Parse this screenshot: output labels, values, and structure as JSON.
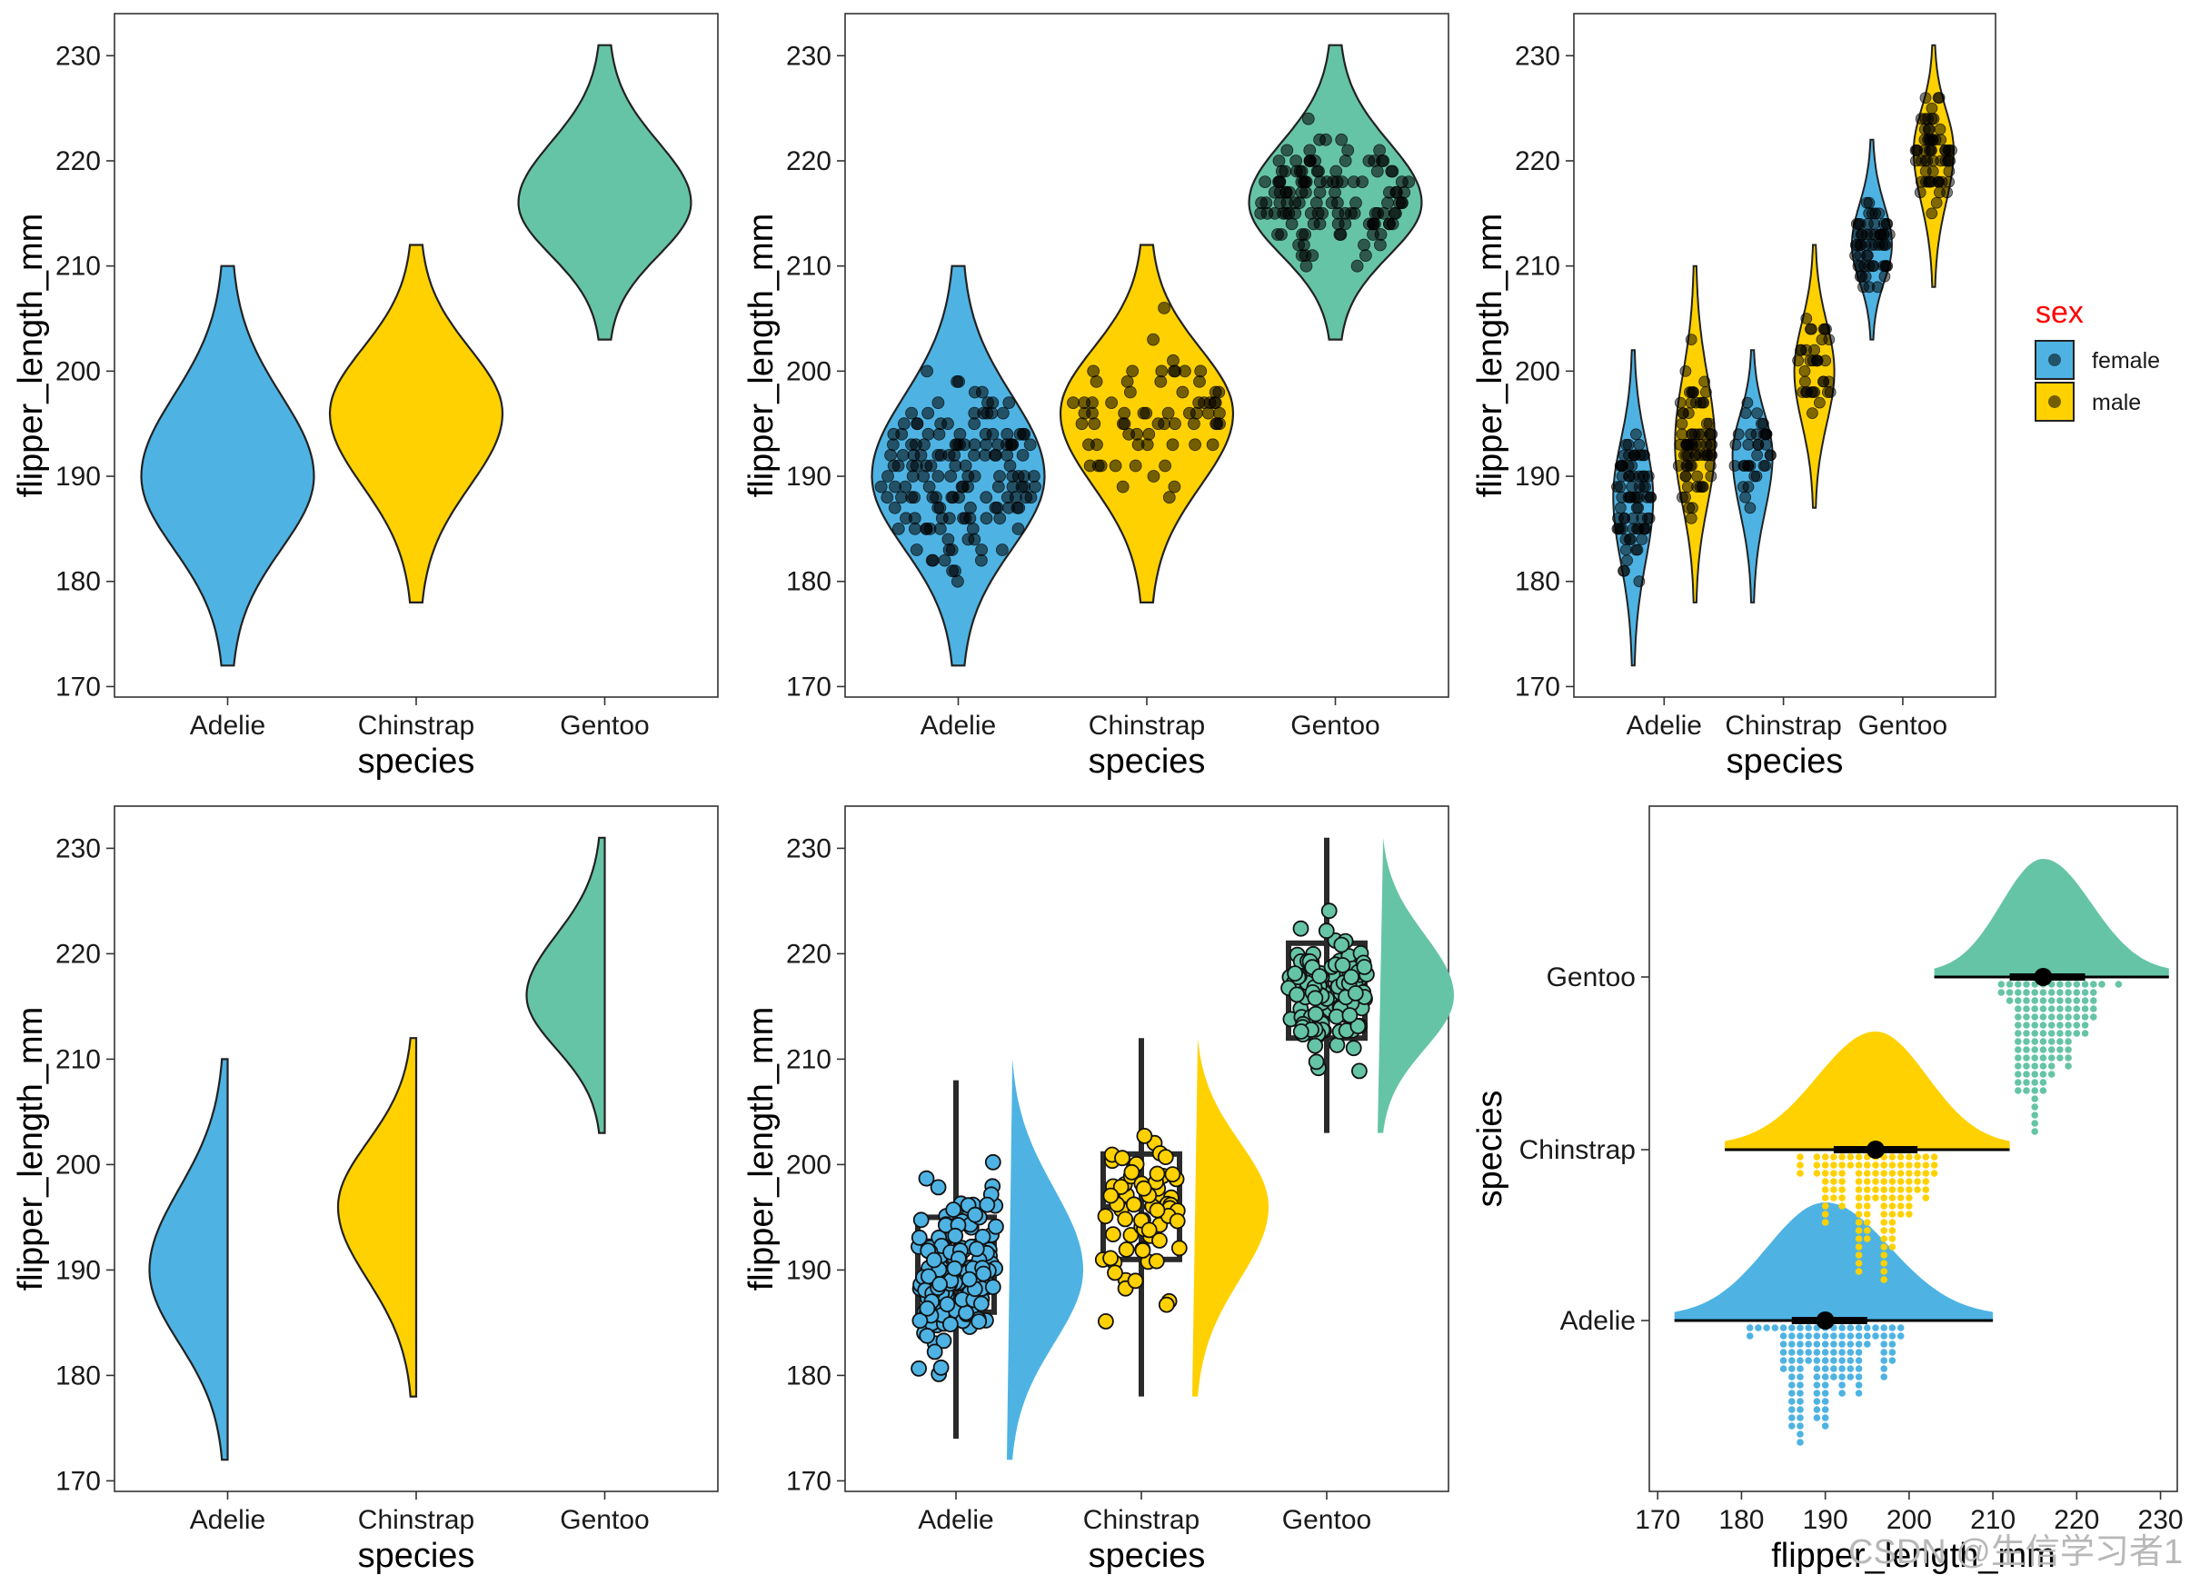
{
  "colors": {
    "Adelie": "#4EB3E3",
    "Chinstrap": "#FFD100",
    "Gentoo": "#66C4A6",
    "female": "#4EB3E3",
    "male": "#FFD100",
    "legend_title": "#FF0000",
    "outline": "#222222"
  },
  "watermark": "CSDN @生信学习者1",
  "chart_data": [
    {
      "id": "p1",
      "type": "violin",
      "xlabel": "species",
      "ylabel": "flipper_length_mm",
      "categories": [
        "Adelie",
        "Chinstrap",
        "Gentoo"
      ],
      "ylim": [
        169,
        234
      ],
      "yticks": [
        170,
        180,
        190,
        200,
        210,
        220,
        230
      ],
      "violins": [
        {
          "species": "Adelie",
          "min": 172,
          "max": 210,
          "median": 190
        },
        {
          "species": "Chinstrap",
          "min": 178,
          "max": 212,
          "median": 196
        },
        {
          "species": "Gentoo",
          "min": 203,
          "max": 231,
          "median": 216
        }
      ]
    },
    {
      "id": "p2",
      "type": "violin+jitter",
      "xlabel": "species",
      "ylabel": "flipper_length_mm",
      "categories": [
        "Adelie",
        "Chinstrap",
        "Gentoo"
      ],
      "ylim": [
        169,
        234
      ],
      "yticks": [
        170,
        180,
        190,
        200,
        210,
        220,
        230
      ],
      "violins": [
        {
          "species": "Adelie",
          "min": 172,
          "max": 210,
          "median": 190,
          "n": 151
        },
        {
          "species": "Chinstrap",
          "min": 178,
          "max": 212,
          "median": 196,
          "n": 68
        },
        {
          "species": "Gentoo",
          "min": 203,
          "max": 231,
          "median": 216,
          "n": 123
        }
      ]
    },
    {
      "id": "p3",
      "type": "grouped violin+jitter",
      "xlabel": "species",
      "ylabel": "flipper_length_mm",
      "categories": [
        "Adelie",
        "Chinstrap",
        "Gentoo"
      ],
      "ylim": [
        169,
        234
      ],
      "yticks": [
        170,
        180,
        190,
        200,
        210,
        220,
        230
      ],
      "legend": {
        "title": "sex",
        "entries": [
          "female",
          "male"
        ],
        "position": "right"
      },
      "violins": [
        {
          "species": "Adelie",
          "sex": "female",
          "min": 172,
          "max": 202,
          "median": 188,
          "n": 73
        },
        {
          "species": "Adelie",
          "sex": "male",
          "min": 178,
          "max": 210,
          "median": 193,
          "n": 73
        },
        {
          "species": "Chinstrap",
          "sex": "female",
          "min": 178,
          "max": 202,
          "median": 192,
          "n": 34
        },
        {
          "species": "Chinstrap",
          "sex": "male",
          "min": 187,
          "max": 212,
          "median": 200,
          "n": 34
        },
        {
          "species": "Gentoo",
          "sex": "female",
          "min": 203,
          "max": 222,
          "median": 212,
          "n": 58
        },
        {
          "species": "Gentoo",
          "sex": "male",
          "min": 208,
          "max": 231,
          "median": 221,
          "n": 61
        }
      ]
    },
    {
      "id": "p4",
      "type": "half violin",
      "xlabel": "species",
      "ylabel": "flipper_length_mm",
      "categories": [
        "Adelie",
        "Chinstrap",
        "Gentoo"
      ],
      "ylim": [
        169,
        234
      ],
      "yticks": [
        170,
        180,
        190,
        200,
        210,
        220,
        230
      ],
      "violins": [
        {
          "species": "Adelie",
          "min": 172,
          "max": 210,
          "median": 190
        },
        {
          "species": "Chinstrap",
          "min": 178,
          "max": 212,
          "median": 196
        },
        {
          "species": "Gentoo",
          "min": 203,
          "max": 231,
          "median": 216
        }
      ]
    },
    {
      "id": "p5",
      "type": "raincloud (boxplot + jitter + half violin)",
      "xlabel": "species",
      "ylabel": "flipper_length_mm",
      "categories": [
        "Adelie",
        "Chinstrap",
        "Gentoo"
      ],
      "ylim": [
        169,
        234
      ],
      "yticks": [
        170,
        180,
        190,
        200,
        210,
        220,
        230
      ],
      "violins": [
        {
          "species": "Adelie",
          "min": 172,
          "max": 210,
          "median": 190,
          "q1": 186,
          "q3": 195,
          "whisker_low": 174,
          "whisker_high": 208,
          "n": 151
        },
        {
          "species": "Chinstrap",
          "min": 178,
          "max": 212,
          "median": 196,
          "q1": 191,
          "q3": 201,
          "whisker_low": 178,
          "whisker_high": 212,
          "n": 68
        },
        {
          "species": "Gentoo",
          "min": 203,
          "max": 231,
          "median": 216,
          "q1": 212,
          "q3": 221,
          "whisker_low": 203,
          "whisker_high": 231,
          "n": 123
        }
      ]
    },
    {
      "id": "p6",
      "type": "horizontal half-eye + dotplot",
      "xlabel": "flipper_length_mm",
      "ylabel": "species",
      "categories": [
        "Adelie",
        "Chinstrap",
        "Gentoo"
      ],
      "xlim": [
        169,
        232
      ],
      "xticks": [
        170,
        180,
        190,
        200,
        210,
        220,
        230
      ],
      "violins": [
        {
          "species": "Adelie",
          "min": 172,
          "max": 210,
          "median": 190,
          "q1": 186,
          "q3": 195
        },
        {
          "species": "Chinstrap",
          "min": 178,
          "max": 212,
          "median": 196,
          "q1": 191,
          "q3": 201
        },
        {
          "species": "Gentoo",
          "min": 203,
          "max": 231,
          "median": 216,
          "q1": 212,
          "q3": 221
        }
      ]
    }
  ]
}
